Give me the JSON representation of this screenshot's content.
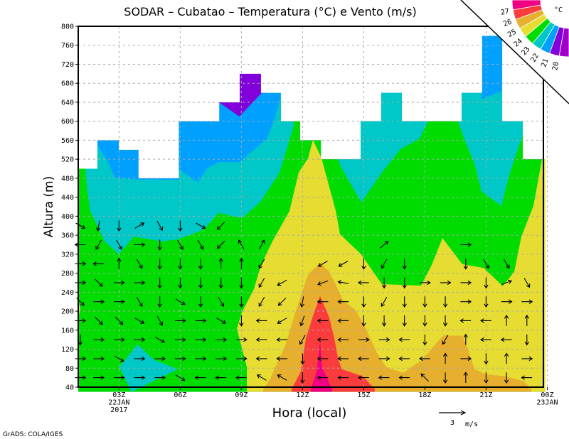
{
  "chart_data": {
    "type": "contour",
    "title": "SODAR – Cubatao – Temperatura (°C) e Vento (m/s)",
    "xlabel": "Hora (local)",
    "ylabel": "Altura (m)",
    "xlim": [
      1,
      23.81
    ],
    "ylim": [
      40,
      800
    ],
    "grid": true,
    "yticks": [
      "40",
      "80",
      "120",
      "160",
      "200",
      "240",
      "280",
      "320",
      "360",
      "400",
      "440",
      "480",
      "520",
      "560",
      "600",
      "640",
      "680",
      "720",
      "760",
      "800"
    ],
    "xticks": [
      {
        "hour": 3,
        "labels": [
          "03Z",
          "22JAN",
          "2017"
        ]
      },
      {
        "hour": 6,
        "labels": [
          "06Z"
        ]
      },
      {
        "hour": 9,
        "labels": [
          "09Z"
        ]
      },
      {
        "hour": 12,
        "labels": [
          "12Z"
        ]
      },
      {
        "hour": 15,
        "labels": [
          "15Z"
        ]
      },
      {
        "hour": 18,
        "labels": [
          "18Z"
        ]
      },
      {
        "hour": 21,
        "labels": [
          "21Z"
        ]
      },
      {
        "hour": 24,
        "labels": [
          "00Z",
          "23JAN"
        ]
      }
    ],
    "colorbar": {
      "unit": "°C",
      "position": "top-right",
      "labels": [
        "20",
        "21",
        "22",
        "23",
        "24",
        "25",
        "26",
        "27"
      ],
      "colors": [
        "#a000c8",
        "#8200dc",
        "#00a0ff",
        "#00c8c8",
        "#00dc00",
        "#e6dc32",
        "#e6af2d",
        "#fa3c3c",
        "#f00082"
      ]
    },
    "data_envelope": {
      "edges": [
        1,
        1.94,
        2.99,
        3.96,
        5.93,
        7.91,
        8.92,
        9.96,
        10.94,
        11.88,
        12.9,
        14.85,
        15.86,
        16.87,
        19.8,
        20.8,
        21.79,
        22.8,
        23.9
      ],
      "tops": [
        500,
        560,
        540,
        480,
        600,
        640,
        700,
        660,
        600,
        560,
        520,
        600,
        660,
        600,
        660,
        780,
        600,
        520
      ]
    },
    "base_color": "#00a0ff",
    "regions": [
      {
        "name": "region-below-21C",
        "color": "#8200dc",
        "points": [
          [
            7.9,
            640
          ],
          [
            8.9,
            610
          ],
          [
            10,
            660
          ],
          [
            10,
            720
          ],
          [
            7.9,
            720
          ]
        ]
      },
      {
        "name": "region-22-23C",
        "color": "#00c8c8",
        "points": [
          [
            0.9,
            496
          ],
          [
            0.97,
            496
          ],
          [
            1.94,
            549
          ],
          [
            2.4,
            519
          ],
          [
            2.81,
            481
          ],
          [
            3.96,
            477
          ],
          [
            5.92,
            477
          ],
          [
            5.95,
            499
          ],
          [
            6.86,
            471
          ],
          [
            7.28,
            499
          ],
          [
            7.87,
            514
          ],
          [
            8.92,
            514
          ],
          [
            9.44,
            534
          ],
          [
            10.24,
            562
          ],
          [
            10.59,
            601
          ],
          [
            10.9,
            644
          ],
          [
            10.9,
            820
          ],
          [
            20.78,
            820
          ],
          [
            20.78,
            646
          ],
          [
            21.79,
            664
          ],
          [
            21.79,
            820
          ],
          [
            24,
            820
          ],
          [
            24,
            30
          ],
          [
            0.9,
            30
          ]
        ]
      },
      {
        "name": "region-23-24C",
        "color": "#00dc00",
        "points": [
          [
            0.9,
            501
          ],
          [
            1.35,
            501
          ],
          [
            1.42,
            462
          ],
          [
            1.59,
            411
          ],
          [
            2.29,
            347
          ],
          [
            2.99,
            320
          ],
          [
            3.72,
            357
          ],
          [
            5.08,
            347
          ],
          [
            5.88,
            351
          ],
          [
            7.17,
            372
          ],
          [
            7.87,
            407
          ],
          [
            9.02,
            396
          ],
          [
            9.72,
            422
          ],
          [
            9.96,
            432
          ],
          [
            10.42,
            462
          ],
          [
            10.87,
            492
          ],
          [
            11.22,
            541
          ],
          [
            11.57,
            591
          ],
          [
            11.64,
            820
          ],
          [
            13.73,
            820
          ],
          [
            13.73,
            522
          ],
          [
            13.91,
            501
          ],
          [
            14.88,
            429
          ],
          [
            15.89,
            492
          ],
          [
            16.8,
            541
          ],
          [
            17.74,
            564
          ],
          [
            18.34,
            616
          ],
          [
            19.49,
            616
          ],
          [
            19.94,
            561
          ],
          [
            20.43,
            511
          ],
          [
            20.78,
            452
          ],
          [
            21.75,
            422
          ],
          [
            22.17,
            492
          ],
          [
            22.8,
            571
          ],
          [
            22.97,
            616
          ],
          [
            24,
            616
          ],
          [
            24,
            30
          ],
          [
            0.9,
            30
          ]
        ]
      },
      {
        "name": "region-24-25C",
        "color": "#e6dc32",
        "points": [
          [
            9.27,
            30
          ],
          [
            9.27,
            82
          ],
          [
            9.02,
            123
          ],
          [
            8.78,
            163
          ],
          [
            9.02,
            197
          ],
          [
            9.62,
            247
          ],
          [
            9.96,
            297
          ],
          [
            10.52,
            347
          ],
          [
            11.36,
            411
          ],
          [
            11.81,
            492
          ],
          [
            12.27,
            522
          ],
          [
            12.51,
            561
          ],
          [
            12.93,
            522
          ],
          [
            13.31,
            462
          ],
          [
            13.63,
            411
          ],
          [
            13.84,
            362
          ],
          [
            14.85,
            321
          ],
          [
            15.89,
            257
          ],
          [
            17.81,
            254
          ],
          [
            18.34,
            298
          ],
          [
            18.86,
            354
          ],
          [
            19.83,
            299
          ],
          [
            20.88,
            291
          ],
          [
            21.82,
            253
          ],
          [
            22.38,
            283
          ],
          [
            22.73,
            357
          ],
          [
            23.32,
            422
          ],
          [
            23.74,
            519
          ],
          [
            24,
            530
          ],
          [
            24,
            30
          ]
        ]
      },
      {
        "name": "region-24-25C-left",
        "color": "#e6dc32",
        "points": [
          [
            0.9,
            240
          ],
          [
            1.1,
            205
          ],
          [
            0.9,
            165
          ]
        ]
      },
      {
        "name": "region-22-23C-low",
        "color": "#00c8c8",
        "points": [
          [
            3.02,
            82
          ],
          [
            3.9,
            130
          ],
          [
            4.73,
            97
          ],
          [
            5.88,
            78
          ],
          [
            3.9,
            36
          ],
          [
            3.6,
            30
          ]
        ]
      },
      {
        "name": "region-25-26C",
        "color": "#e6af2d",
        "points": [
          [
            10.07,
            30
          ],
          [
            10.07,
            36
          ],
          [
            10.42,
            58
          ],
          [
            10.77,
            93
          ],
          [
            11.12,
            123
          ],
          [
            11.57,
            187
          ],
          [
            11.99,
            242
          ],
          [
            12.27,
            277
          ],
          [
            12.86,
            302
          ],
          [
            13.31,
            283
          ],
          [
            13.66,
            253
          ],
          [
            13.98,
            223
          ],
          [
            14.6,
            202
          ],
          [
            15.06,
            167
          ],
          [
            15.65,
            112
          ],
          [
            16.1,
            82
          ],
          [
            16.94,
            70
          ],
          [
            17.85,
            97
          ],
          [
            18.89,
            149
          ],
          [
            19.83,
            148
          ],
          [
            20.08,
            123
          ],
          [
            20.43,
            78
          ],
          [
            20.99,
            67
          ],
          [
            21.93,
            63
          ],
          [
            22.87,
            52
          ],
          [
            23.22,
            36
          ],
          [
            23.22,
            30
          ]
        ]
      },
      {
        "name": "region-26-27C",
        "color": "#fa3c3c",
        "points": [
          [
            11.46,
            30
          ],
          [
            11.46,
            36
          ],
          [
            11.92,
            73
          ],
          [
            12.16,
            142
          ],
          [
            12.51,
            190
          ],
          [
            12.86,
            232
          ],
          [
            13.31,
            187
          ],
          [
            13.56,
            142
          ],
          [
            13.73,
            103
          ],
          [
            13.91,
            78
          ],
          [
            14.95,
            63
          ],
          [
            15.54,
            36
          ],
          [
            15.54,
            30
          ]
        ]
      },
      {
        "name": "region-above-27C",
        "color": "#f00082",
        "points": [
          [
            12.41,
            30
          ],
          [
            12.41,
            36
          ],
          [
            12.69,
            73
          ],
          [
            12.86,
            137
          ],
          [
            12.96,
            82
          ],
          [
            13.45,
            36
          ],
          [
            13.45,
            30
          ]
        ]
      }
    ],
    "wind": {
      "speed_mps": 1.2,
      "levels": [
        60,
        100,
        140,
        180,
        220,
        260,
        300,
        340,
        380
      ],
      "times": [
        1.1,
        2,
        3,
        4,
        5,
        6,
        7,
        8,
        9,
        10,
        11,
        12,
        13,
        14,
        15,
        16,
        17,
        18,
        19,
        20,
        21,
        22,
        23
      ],
      "direction_deg": [
        [
          0,
          0,
          -90,
          0,
          -45,
          0,
          0,
          180,
          -30
        ],
        [
          0,
          0,
          0,
          -45,
          0,
          -45,
          180,
          -120,
          -100
        ],
        [
          0,
          -30,
          0,
          -45,
          0,
          0,
          90,
          -60,
          -90
        ],
        [
          0,
          0,
          0,
          -30,
          -60,
          0,
          -60,
          0,
          30
        ],
        [
          0,
          0,
          -30,
          -60,
          -90,
          -90,
          -90,
          -90,
          -60
        ],
        [
          -30,
          0,
          0,
          0,
          -30,
          -90,
          -90,
          -60,
          -90
        ],
        [
          180,
          0,
          0,
          0,
          -90,
          -90,
          -90,
          -60,
          -30
        ],
        [
          180,
          0,
          0,
          -30,
          -60,
          -90,
          90,
          -135,
          -135
        ],
        [
          180,
          0,
          0,
          -90,
          -90,
          -90,
          90,
          120,
          null
        ],
        [
          150,
          180,
          180,
          180,
          -120,
          -120,
          -120,
          60,
          null
        ],
        [
          150,
          180,
          180,
          -150,
          -135,
          -150,
          null,
          null,
          null
        ],
        [
          -90,
          -90,
          -120,
          -110,
          -100,
          null,
          null,
          null,
          null
        ],
        [
          180,
          180,
          180,
          180,
          180,
          200,
          -150,
          null,
          null
        ],
        [
          180,
          180,
          180,
          180,
          180,
          170,
          -150,
          null,
          null
        ],
        [
          180,
          180,
          0,
          -90,
          -90,
          180,
          -90,
          null,
          null
        ],
        [
          180,
          0,
          0,
          -90,
          -120,
          -90,
          -120,
          40,
          null
        ],
        [
          180,
          180,
          180,
          -90,
          -90,
          -90,
          -90,
          null,
          null
        ],
        [
          135,
          180,
          -90,
          -90,
          -90,
          0,
          null,
          null,
          null
        ],
        [
          -90,
          90,
          -120,
          -90,
          -90,
          0,
          null,
          null,
          null
        ],
        [
          90,
          0,
          90,
          180,
          0,
          0,
          -90,
          0,
          null
        ],
        [
          -90,
          -90,
          180,
          180,
          -90,
          -90,
          -60,
          null,
          null
        ],
        [
          -90,
          90,
          180,
          90,
          0,
          20,
          -60,
          null,
          null
        ],
        [
          180,
          0,
          -90,
          90,
          0,
          -60,
          null,
          null,
          null
        ]
      ]
    },
    "reference_vector": {
      "value": "3",
      "unit": "m/s",
      "speed_mps": 3
    }
  },
  "footer": "GrADS: COLA/IGES"
}
